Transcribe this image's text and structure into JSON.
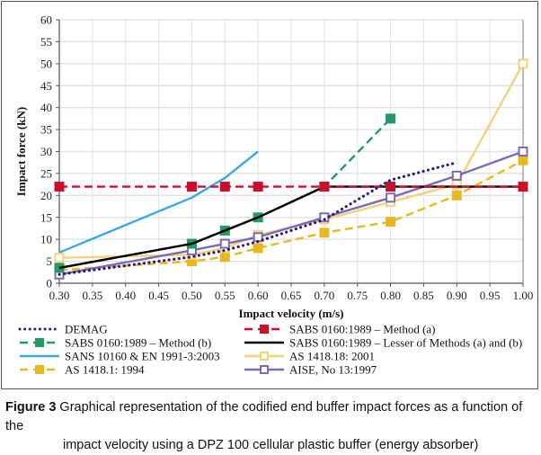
{
  "chart_data": {
    "type": "line",
    "title": "",
    "xlabel": "Impact velocity (m/s)",
    "ylabel": "Impact force (kN)",
    "xlim": [
      0.3,
      1.0
    ],
    "ylim": [
      0,
      60
    ],
    "xticks": [
      "0.30",
      "0.35",
      "0.40",
      "0.45",
      "0.50",
      "0.55",
      "0.60",
      "0.65",
      "0.70",
      "0.75",
      "0.80",
      "0.85",
      "0.90",
      "0.95",
      "1.00"
    ],
    "yticks": [
      "0",
      "5",
      "10",
      "15",
      "20",
      "25",
      "30",
      "35",
      "40",
      "45",
      "50",
      "55",
      "60"
    ],
    "grid": true,
    "legend_position": "bottom",
    "series": [
      {
        "name": "DEMAG",
        "color": "#2b1f7a",
        "style": "dotted",
        "marker": "none",
        "x": [
          0.3,
          0.5,
          0.55,
          0.6,
          0.7,
          0.8,
          0.9
        ],
        "y": [
          2.0,
          6.0,
          7.5,
          9.5,
          14.5,
          23.5,
          27.5
        ]
      },
      {
        "name": "SABS 0160:1989 – Method (a)",
        "color": "#c8102e",
        "style": "dashed",
        "marker": "filled-square",
        "x": [
          0.3,
          0.5,
          0.55,
          0.6,
          0.7,
          0.8,
          1.0
        ],
        "y": [
          22,
          22,
          22,
          22,
          22,
          22,
          22
        ]
      },
      {
        "name": "SABS 0160:1989 – Method (b)",
        "color": "#229966",
        "style": "dashed",
        "marker": "filled-square",
        "x": [
          0.3,
          0.5,
          0.55,
          0.6,
          0.7,
          0.8
        ],
        "y": [
          3.5,
          9.0,
          12.0,
          15.0,
          22.0,
          37.5
        ]
      },
      {
        "name": "SABS 0160:1989 – Lesser of Methods (a) and (b)",
        "color": "#000000",
        "style": "solid",
        "marker": "none",
        "x": [
          0.3,
          0.5,
          0.55,
          0.6,
          0.7,
          0.8,
          0.9,
          1.0
        ],
        "y": [
          3.5,
          9.0,
          12.0,
          15.0,
          22.0,
          22.0,
          22.0,
          22.0
        ]
      },
      {
        "name": "SANS 10160 & EN 1991-3:2003",
        "color": "#3aa8e8",
        "style": "solid",
        "marker": "none",
        "x": [
          0.3,
          0.5,
          0.55,
          0.6
        ],
        "y": [
          7.0,
          19.5,
          24.0,
          30.0
        ]
      },
      {
        "name": "AS 1418.18: 2001",
        "color": "#f2d27a",
        "style": "solid",
        "marker": "open-square",
        "x": [
          0.3,
          0.5,
          0.55,
          0.6,
          0.7,
          0.8,
          0.9,
          1.0
        ],
        "y": [
          5.8,
          6.5,
          8.0,
          11.0,
          14.5,
          18.5,
          22.5,
          50.0
        ]
      },
      {
        "name": "AS 1418.1: 1994",
        "color": "#e8b820",
        "style": "dashed",
        "marker": "filled-square",
        "x": [
          0.3,
          0.5,
          0.55,
          0.6,
          0.7,
          0.8,
          0.9,
          1.0
        ],
        "y": [
          3.0,
          5.0,
          6.0,
          8.0,
          11.5,
          14.0,
          20.0,
          28.0
        ]
      },
      {
        "name": "AISE, No 13:1997",
        "color": "#7b6bb5",
        "style": "solid",
        "marker": "open-square",
        "x": [
          0.3,
          0.5,
          0.55,
          0.6,
          0.7,
          0.8,
          0.9,
          1.0
        ],
        "y": [
          2.0,
          7.5,
          9.0,
          10.5,
          15.0,
          19.5,
          24.5,
          30.0
        ]
      }
    ],
    "legend_order": [
      [
        "DEMAG",
        "SABS 0160:1989 – Method (a)"
      ],
      [
        "SABS 0160:1989 – Method (b)",
        "SABS 0160:1989 – Lesser of Methods (a) and (b)"
      ],
      [
        "SANS 10160 & EN 1991-3:2003",
        "AS 1418.18: 2001"
      ],
      [
        "AS 1418.1: 1994",
        "AISE, No 13:1997"
      ]
    ]
  },
  "caption": {
    "figure_label": "Figure 3",
    "line1": " Graphical representation of the codified end buffer impact forces as a function of the",
    "line2": "impact velocity using a DPZ 100 cellular plastic buffer (energy absorber)"
  }
}
